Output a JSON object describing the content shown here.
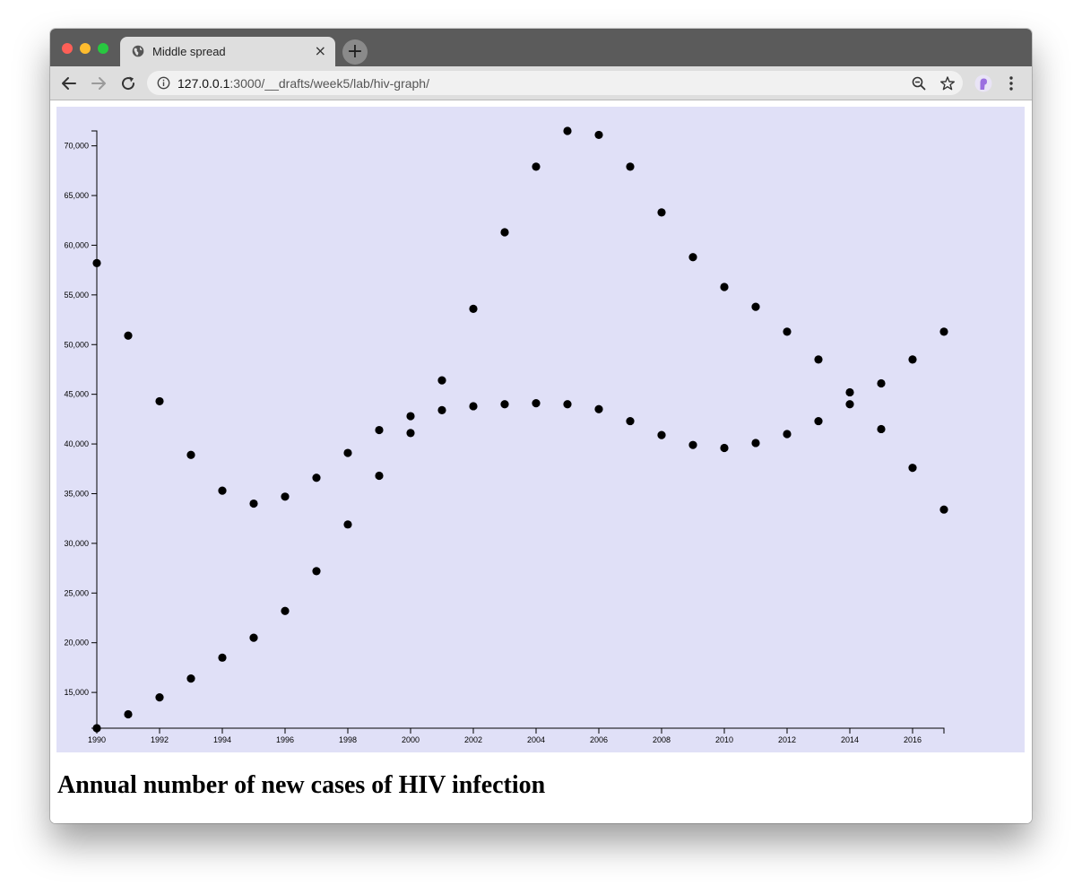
{
  "browser": {
    "tab_title": "Middle spread",
    "close_symbol": "×",
    "new_tab_symbol": "+",
    "url_host": "127.0.0.1",
    "url_path": ":3000/__drafts/week5/lab/hiv-graph/",
    "icons": [
      "globe-icon",
      "close-icon",
      "plus-icon",
      "back-arrow-icon",
      "forward-arrow-icon",
      "reload-icon",
      "info-icon",
      "zoom-out-icon",
      "star-icon",
      "profile-icon",
      "menu-dots-icon"
    ]
  },
  "page": {
    "heading": "Annual number of new cases of HIV infection"
  },
  "colors": {
    "chart_background": "#e0e0f7",
    "points": "#000000"
  },
  "chart_data": {
    "type": "scatter",
    "title": "",
    "xlabel": "",
    "ylabel": "",
    "xlim": [
      1990,
      2017
    ],
    "ylim": [
      11400,
      71500
    ],
    "x_ticks": [
      1990,
      1992,
      1994,
      1996,
      1998,
      2000,
      2002,
      2004,
      2006,
      2008,
      2010,
      2012,
      2014,
      2016
    ],
    "y_ticks": [
      15000,
      20000,
      25000,
      30000,
      35000,
      40000,
      45000,
      50000,
      55000,
      60000,
      65000,
      70000
    ],
    "grid": false,
    "legend": "none",
    "series": [
      {
        "x": [
          1990,
          1991,
          1992,
          1993,
          1994,
          1995,
          1996,
          1997,
          1998,
          1999,
          2000,
          2001,
          2002,
          2003,
          2004,
          2005,
          2006,
          2007,
          2008,
          2009,
          2010,
          2011,
          2012,
          2013,
          2014,
          2015,
          2016,
          2017
        ],
        "y": [
          11400,
          12800,
          14500,
          16400,
          18500,
          20500,
          23200,
          27200,
          31900,
          36800,
          41100,
          46400,
          53600,
          61300,
          67900,
          71500,
          71100,
          67900,
          63300,
          58800,
          55800,
          53800,
          51300,
          48500,
          45200,
          41500,
          37600,
          33400
        ]
      },
      {
        "x": [
          1990,
          1991,
          1992,
          1993,
          1994,
          1995,
          1996,
          1997,
          1998,
          1999,
          2000,
          2001,
          2002,
          2003,
          2004,
          2005,
          2006,
          2007,
          2008,
          2009,
          2010,
          2011,
          2012,
          2013,
          2014,
          2015,
          2016,
          2017
        ],
        "y": [
          58200,
          50900,
          44300,
          38900,
          35300,
          34000,
          34700,
          36600,
          39100,
          41400,
          42800,
          43400,
          43800,
          44000,
          44100,
          44000,
          43500,
          42300,
          40900,
          39900,
          39600,
          40100,
          41000,
          42300,
          44000,
          46100,
          48500,
          51300
        ]
      }
    ]
  }
}
